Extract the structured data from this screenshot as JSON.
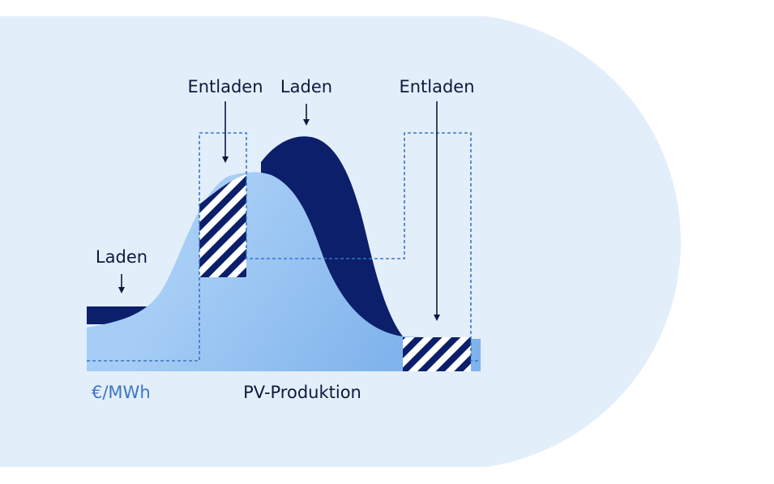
{
  "labels": {
    "laden_left": "Laden",
    "entladen_mid": "Entladen",
    "laden_top": "Laden",
    "entladen_right": "Entladen",
    "unit": "€/MWh",
    "pv": "PV-Produktion"
  },
  "colors": {
    "panel": "#e3eefb",
    "dark_navy": "#0b1f6b",
    "light_blue": "#a6cdf5",
    "gradient_blue": "#7fb3ec",
    "price_line": "#3a76c5",
    "text": "#0d1a3d",
    "unit_text": "#3a76c5"
  }
}
